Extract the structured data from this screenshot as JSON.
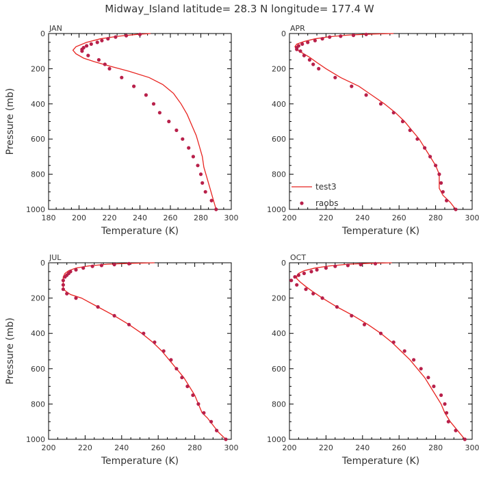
{
  "title": "Midway_Island   latitude= 28.3 N longitude= 177.4 W",
  "colors": {
    "model": "#e8231f",
    "obs": "#b8204a",
    "axis": "#000000",
    "text": "#333333"
  },
  "legend": {
    "model_label": "test3",
    "obs_label": "raobs",
    "placement": "bottom-left of APR panel"
  },
  "chart_data": [
    {
      "type": "line",
      "panel": "JAN",
      "xlabel": "Temperature (K)",
      "ylabel": "Pressure (mb)",
      "xlim": [
        180,
        300
      ],
      "ylim": [
        1000,
        0
      ],
      "xticks": [
        180,
        200,
        220,
        240,
        260,
        280,
        300
      ],
      "yticks": [
        0,
        200,
        400,
        600,
        800,
        1000
      ],
      "series": [
        {
          "name": "test3",
          "kind": "line",
          "points": [
            [
              247,
              0
            ],
            [
              238,
              5
            ],
            [
              226,
              15
            ],
            [
              214,
              30
            ],
            [
              205,
              50
            ],
            [
              198,
              75
            ],
            [
              196,
              95
            ],
            [
              198,
              115
            ],
            [
              203,
              140
            ],
            [
              210,
              160
            ],
            [
              220,
              185
            ],
            [
              233,
              215
            ],
            [
              246,
              250
            ],
            [
              255,
              290
            ],
            [
              262,
              340
            ],
            [
              267,
              400
            ],
            [
              271,
              460
            ],
            [
              274,
              520
            ],
            [
              277,
              580
            ],
            [
              279,
              640
            ],
            [
              281,
              700
            ],
            [
              282,
              760
            ],
            [
              284,
              820
            ],
            [
              286,
              880
            ],
            [
              288,
              940
            ],
            [
              290,
              1000
            ]
          ]
        },
        {
          "name": "raobs",
          "kind": "scatter",
          "points": [
            [
              240,
              5
            ],
            [
              231,
              12
            ],
            [
              224,
              20
            ],
            [
              219,
              30
            ],
            [
              215,
              40
            ],
            [
              212,
              50
            ],
            [
              208,
              60
            ],
            [
              205,
              70
            ],
            [
              203,
              80
            ],
            [
              202,
              90
            ],
            [
              202,
              100
            ],
            [
              206,
              125
            ],
            [
              213,
              150
            ],
            [
              217,
              175
            ],
            [
              220,
              200
            ],
            [
              228,
              250
            ],
            [
              236,
              300
            ],
            [
              244,
              350
            ],
            [
              249,
              400
            ],
            [
              253,
              450
            ],
            [
              259,
              500
            ],
            [
              264,
              550
            ],
            [
              268,
              600
            ],
            [
              272,
              650
            ],
            [
              275,
              700
            ],
            [
              278,
              750
            ],
            [
              280,
              800
            ],
            [
              281,
              850
            ],
            [
              283,
              900
            ],
            [
              287,
              950
            ],
            [
              290,
              1000
            ]
          ]
        }
      ]
    },
    {
      "type": "line",
      "panel": "APR",
      "xlabel": "Temperature (K)",
      "ylabel": "",
      "xlim": [
        200,
        300
      ],
      "ylim": [
        1000,
        0
      ],
      "xticks": [
        200,
        220,
        240,
        260,
        280,
        300
      ],
      "yticks": [
        0,
        200,
        400,
        600,
        800,
        1000
      ],
      "series": [
        {
          "name": "test3",
          "kind": "line",
          "points": [
            [
              257,
              0
            ],
            [
              245,
              3
            ],
            [
              233,
              8
            ],
            [
              222,
              18
            ],
            [
              214,
              30
            ],
            [
              208,
              45
            ],
            [
              204,
              60
            ],
            [
              203,
              75
            ],
            [
              204,
              90
            ],
            [
              207,
              110
            ],
            [
              211,
              135
            ],
            [
              215,
              165
            ],
            [
              220,
              200
            ],
            [
              228,
              250
            ],
            [
              238,
              300
            ],
            [
              245,
              350
            ],
            [
              252,
              400
            ],
            [
              258,
              450
            ],
            [
              263,
              500
            ],
            [
              267,
              550
            ],
            [
              271,
              600
            ],
            [
              274,
              650
            ],
            [
              277,
              700
            ],
            [
              280,
              750
            ],
            [
              282,
              800
            ],
            [
              282,
              850
            ],
            [
              282,
              880
            ],
            [
              284,
              920
            ],
            [
              288,
              960
            ],
            [
              291,
              1000
            ]
          ]
        },
        {
          "name": "raobs",
          "kind": "scatter",
          "points": [
            [
              242,
              5
            ],
            [
              235,
              10
            ],
            [
              228,
              15
            ],
            [
              222,
              20
            ],
            [
              218,
              30
            ],
            [
              214,
              40
            ],
            [
              210,
              50
            ],
            [
              207,
              60
            ],
            [
              205,
              70
            ],
            [
              204,
              80
            ],
            [
              204,
              90
            ],
            [
              206,
              100
            ],
            [
              208,
              125
            ],
            [
              211,
              150
            ],
            [
              213,
              175
            ],
            [
              216,
              200
            ],
            [
              225,
              250
            ],
            [
              234,
              300
            ],
            [
              242,
              350
            ],
            [
              250,
              400
            ],
            [
              257,
              450
            ],
            [
              262,
              500
            ],
            [
              266,
              550
            ],
            [
              270,
              600
            ],
            [
              274,
              650
            ],
            [
              277,
              700
            ],
            [
              280,
              750
            ],
            [
              282,
              800
            ],
            [
              283,
              850
            ],
            [
              284,
              900
            ],
            [
              286,
              950
            ],
            [
              291,
              1000
            ]
          ]
        }
      ]
    },
    {
      "type": "line",
      "panel": "JUL",
      "xlabel": "Temperature (K)",
      "ylabel": "Pressure (mb)",
      "xlim": [
        200,
        300
      ],
      "ylim": [
        1000,
        0
      ],
      "xticks": [
        200,
        220,
        240,
        260,
        280,
        300
      ],
      "yticks": [
        0,
        200,
        400,
        600,
        800,
        1000
      ],
      "series": [
        {
          "name": "test3",
          "kind": "line",
          "points": [
            [
              258,
              0
            ],
            [
              245,
              3
            ],
            [
              232,
              8
            ],
            [
              222,
              18
            ],
            [
              215,
              30
            ],
            [
              211,
              45
            ],
            [
              209,
              60
            ],
            [
              208,
              80
            ],
            [
              208,
              100
            ],
            [
              208,
              120
            ],
            [
              208,
              150
            ],
            [
              210,
              165
            ],
            [
              212,
              180
            ],
            [
              218,
              200
            ],
            [
              227,
              250
            ],
            [
              236,
              300
            ],
            [
              244,
              350
            ],
            [
              251,
              400
            ],
            [
              257,
              450
            ],
            [
              262,
              500
            ],
            [
              266,
              550
            ],
            [
              270,
              600
            ],
            [
              274,
              650
            ],
            [
              277,
              700
            ],
            [
              280,
              750
            ],
            [
              282,
              800
            ],
            [
              284,
              850
            ],
            [
              287,
              880
            ],
            [
              290,
              920
            ],
            [
              293,
              960
            ],
            [
              297,
              1000
            ]
          ]
        },
        {
          "name": "raobs",
          "kind": "scatter",
          "points": [
            [
              244,
              5
            ],
            [
              236,
              10
            ],
            [
              229,
              15
            ],
            [
              224,
              20
            ],
            [
              219,
              30
            ],
            [
              215,
              40
            ],
            [
              212,
              50
            ],
            [
              211,
              60
            ],
            [
              210,
              70
            ],
            [
              209,
              80
            ],
            [
              208,
              100
            ],
            [
              208,
              125
            ],
            [
              208,
              150
            ],
            [
              210,
              175
            ],
            [
              215,
              200
            ],
            [
              227,
              250
            ],
            [
              236,
              300
            ],
            [
              244,
              350
            ],
            [
              252,
              400
            ],
            [
              258,
              450
            ],
            [
              263,
              500
            ],
            [
              267,
              550
            ],
            [
              270,
              600
            ],
            [
              273,
              650
            ],
            [
              276,
              700
            ],
            [
              279,
              750
            ],
            [
              282,
              800
            ],
            [
              285,
              850
            ],
            [
              289,
              900
            ],
            [
              292,
              950
            ],
            [
              297,
              1000
            ]
          ]
        }
      ]
    },
    {
      "type": "line",
      "panel": "OCT",
      "xlabel": "Temperature (K)",
      "ylabel": "",
      "xlim": [
        200,
        300
      ],
      "ylim": [
        1000,
        0
      ],
      "xticks": [
        200,
        220,
        240,
        260,
        280,
        300
      ],
      "yticks": [
        0,
        200,
        400,
        600,
        800,
        1000
      ],
      "series": [
        {
          "name": "test3",
          "kind": "line",
          "points": [
            [
              256,
              0
            ],
            [
              244,
              3
            ],
            [
              232,
              8
            ],
            [
              222,
              18
            ],
            [
              214,
              30
            ],
            [
              208,
              45
            ],
            [
              205,
              60
            ],
            [
              204,
              75
            ],
            [
              204,
              90
            ],
            [
              206,
              110
            ],
            [
              209,
              135
            ],
            [
              213,
              165
            ],
            [
              218,
              200
            ],
            [
              226,
              250
            ],
            [
              235,
              300
            ],
            [
              243,
              350
            ],
            [
              250,
              400
            ],
            [
              256,
              450
            ],
            [
              261,
              500
            ],
            [
              266,
              550
            ],
            [
              270,
              600
            ],
            [
              274,
              650
            ],
            [
              277,
              700
            ],
            [
              280,
              750
            ],
            [
              283,
              800
            ],
            [
              285,
              850
            ],
            [
              288,
              900
            ],
            [
              292,
              950
            ],
            [
              296,
              1000
            ]
          ]
        },
        {
          "name": "raobs",
          "kind": "scatter",
          "points": [
            [
              247,
              5
            ],
            [
              239,
              10
            ],
            [
              232,
              15
            ],
            [
              225,
              20
            ],
            [
              220,
              30
            ],
            [
              215,
              40
            ],
            [
              212,
              50
            ],
            [
              208,
              60
            ],
            [
              205,
              70
            ],
            [
              203,
              80
            ],
            [
              201,
              100
            ],
            [
              204,
              125
            ],
            [
              209,
              150
            ],
            [
              213,
              175
            ],
            [
              218,
              200
            ],
            [
              226,
              250
            ],
            [
              234,
              300
            ],
            [
              241,
              350
            ],
            [
              250,
              400
            ],
            [
              257,
              450
            ],
            [
              263,
              500
            ],
            [
              268,
              550
            ],
            [
              272,
              600
            ],
            [
              276,
              650
            ],
            [
              279,
              700
            ],
            [
              283,
              750
            ],
            [
              285,
              800
            ],
            [
              286,
              850
            ],
            [
              287,
              900
            ],
            [
              291,
              950
            ],
            [
              296,
              1000
            ]
          ]
        }
      ]
    }
  ]
}
